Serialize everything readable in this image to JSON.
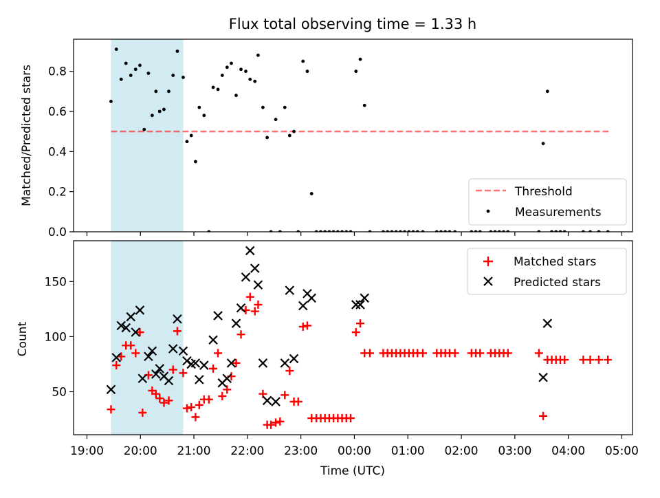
{
  "chart_data": [
    {
      "type": "scatter",
      "title": "Flux total observing time = 1.33 h",
      "xlabel": "",
      "ylabel": "Matched/Predicted stars",
      "xlim": [
        -0.25,
        10.2
      ],
      "ylim": [
        0,
        0.96
      ],
      "yticks": [
        0.0,
        0.2,
        0.4,
        0.6,
        0.8
      ],
      "ytick_labels": [
        "0.0",
        "0.2",
        "0.4",
        "0.6",
        "0.8"
      ],
      "shaded_span": [
        0.45,
        1.8
      ],
      "shaded_color": "#add8e6",
      "threshold": {
        "label": "Threshold",
        "y": 0.5,
        "x": [
          0.45,
          9.75
        ],
        "color": "#ff0000"
      },
      "legend": {
        "position": "lower right",
        "entries": [
          "Threshold",
          "Measurements"
        ]
      },
      "series": [
        {
          "name": "Measurements",
          "marker": "dot",
          "color": "#000000",
          "points": [
            [
              0.45,
              0.65
            ],
            [
              0.55,
              0.91
            ],
            [
              0.64,
              0.76
            ],
            [
              0.73,
              0.84
            ],
            [
              0.82,
              0.78
            ],
            [
              0.91,
              0.81
            ],
            [
              0.99,
              0.83
            ],
            [
              1.07,
              0.51
            ],
            [
              1.15,
              0.79
            ],
            [
              1.22,
              0.58
            ],
            [
              1.29,
              0.7
            ],
            [
              1.36,
              0.6
            ],
            [
              1.44,
              0.61
            ],
            [
              1.53,
              0.7
            ],
            [
              1.61,
              0.78
            ],
            [
              1.69,
              0.9
            ],
            [
              1.8,
              0.77
            ],
            [
              1.87,
              0.45
            ],
            [
              1.95,
              0.48
            ],
            [
              2.03,
              0.35
            ],
            [
              2.1,
              0.62
            ],
            [
              2.19,
              0.58
            ],
            [
              2.28,
              0.0
            ],
            [
              2.36,
              0.72
            ],
            [
              2.45,
              0.71
            ],
            [
              2.53,
              0.78
            ],
            [
              2.62,
              0.82
            ],
            [
              2.7,
              0.84
            ],
            [
              2.79,
              0.68
            ],
            [
              2.88,
              0.81
            ],
            [
              2.97,
              0.8
            ],
            [
              3.05,
              0.76
            ],
            [
              3.14,
              0.75
            ],
            [
              3.2,
              0.88
            ],
            [
              3.29,
              0.62
            ],
            [
              3.37,
              0.47
            ],
            [
              3.44,
              0.0
            ],
            [
              3.53,
              0.56
            ],
            [
              3.61,
              0.0
            ],
            [
              3.7,
              0.62
            ],
            [
              3.79,
              0.48
            ],
            [
              3.87,
              0.5
            ],
            [
              3.95,
              0.0
            ],
            [
              4.04,
              0.85
            ],
            [
              4.12,
              0.8
            ],
            [
              4.2,
              0.19
            ],
            [
              4.29,
              0.0
            ],
            [
              4.37,
              0.0
            ],
            [
              4.45,
              0.0
            ],
            [
              4.53,
              0.0
            ],
            [
              4.61,
              0.0
            ],
            [
              4.69,
              0.0
            ],
            [
              4.77,
              0.0
            ],
            [
              4.85,
              0.0
            ],
            [
              4.93,
              0.0
            ],
            [
              5.03,
              0.8
            ],
            [
              5.11,
              0.86
            ],
            [
              5.19,
              0.63
            ],
            [
              5.29,
              0.0
            ],
            [
              5.54,
              0.0
            ],
            [
              5.62,
              0.0
            ],
            [
              5.7,
              0.0
            ],
            [
              5.78,
              0.0
            ],
            [
              5.86,
              0.0
            ],
            [
              5.94,
              0.0
            ],
            [
              6.02,
              0.0
            ],
            [
              6.1,
              0.0
            ],
            [
              6.18,
              0.0
            ],
            [
              6.28,
              0.0
            ],
            [
              6.54,
              0.0
            ],
            [
              6.62,
              0.0
            ],
            [
              6.7,
              0.0
            ],
            [
              6.78,
              0.0
            ],
            [
              6.88,
              0.0
            ],
            [
              7.19,
              0.0
            ],
            [
              7.27,
              0.0
            ],
            [
              7.35,
              0.0
            ],
            [
              7.55,
              0.0
            ],
            [
              7.63,
              0.0
            ],
            [
              7.71,
              0.0
            ],
            [
              7.79,
              0.0
            ],
            [
              7.87,
              0.0
            ],
            [
              8.45,
              0.0
            ],
            [
              8.53,
              0.44
            ],
            [
              8.61,
              0.7
            ],
            [
              8.69,
              0.0
            ],
            [
              8.77,
              0.0
            ],
            [
              8.85,
              0.0
            ],
            [
              8.93,
              0.0
            ],
            [
              9.28,
              0.0
            ],
            [
              9.41,
              0.0
            ],
            [
              9.57,
              0.0
            ],
            [
              9.74,
              0.0
            ]
          ]
        }
      ]
    },
    {
      "type": "scatter",
      "title": "",
      "xlabel": "Time (UTC)",
      "ylabel": "Count",
      "xlim": [
        -0.25,
        10.2
      ],
      "ylim": [
        11,
        187
      ],
      "yticks": [
        50,
        100,
        150
      ],
      "ytick_labels": [
        "50",
        "100",
        "150"
      ],
      "xticks": [
        0,
        1,
        2,
        3,
        4,
        5,
        6,
        7,
        8,
        9,
        10
      ],
      "xtick_labels": [
        "19:00",
        "20:00",
        "21:00",
        "22:00",
        "23:00",
        "00:00",
        "01:00",
        "02:00",
        "03:00",
        "04:00",
        "05:00"
      ],
      "shaded_span": [
        0.45,
        1.8
      ],
      "shaded_color": "#add8e6",
      "legend": {
        "position": "upper right",
        "entries": [
          "Matched stars",
          "Predicted stars"
        ]
      },
      "series": [
        {
          "name": "Matched stars",
          "marker": "plus",
          "color": "#ff0000",
          "points": [
            [
              0.45,
              34
            ],
            [
              0.55,
              74
            ],
            [
              0.64,
              82
            ],
            [
              0.73,
              92
            ],
            [
              0.82,
              92
            ],
            [
              0.91,
              85
            ],
            [
              0.99,
              104
            ],
            [
              1.04,
              31
            ],
            [
              1.15,
              65
            ],
            [
              1.22,
              51
            ],
            [
              1.29,
              48
            ],
            [
              1.36,
              44
            ],
            [
              1.44,
              40
            ],
            [
              1.53,
              42
            ],
            [
              1.61,
              70
            ],
            [
              1.69,
              105
            ],
            [
              1.8,
              67
            ],
            [
              1.87,
              35
            ],
            [
              1.95,
              36
            ],
            [
              2.03,
              27
            ],
            [
              2.1,
              38
            ],
            [
              2.19,
              43
            ],
            [
              2.28,
              43
            ],
            [
              2.36,
              71
            ],
            [
              2.45,
              85
            ],
            [
              2.53,
              46
            ],
            [
              2.62,
              52
            ],
            [
              2.7,
              64
            ],
            [
              2.79,
              76
            ],
            [
              2.88,
              102
            ],
            [
              2.97,
              124
            ],
            [
              3.05,
              136
            ],
            [
              3.14,
              123
            ],
            [
              3.2,
              129
            ],
            [
              3.29,
              48
            ],
            [
              3.37,
              20
            ],
            [
              3.44,
              20
            ],
            [
              3.53,
              22
            ],
            [
              3.61,
              23
            ],
            [
              3.7,
              47
            ],
            [
              3.79,
              69
            ],
            [
              3.87,
              41
            ],
            [
              3.95,
              41
            ],
            [
              4.04,
              109
            ],
            [
              4.12,
              110
            ],
            [
              4.2,
              26
            ],
            [
              4.29,
              26
            ],
            [
              4.37,
              26
            ],
            [
              4.45,
              26
            ],
            [
              4.53,
              26
            ],
            [
              4.61,
              26
            ],
            [
              4.69,
              26
            ],
            [
              4.77,
              26
            ],
            [
              4.85,
              26
            ],
            [
              4.93,
              26
            ],
            [
              5.03,
              104
            ],
            [
              5.11,
              112
            ],
            [
              5.19,
              85
            ],
            [
              5.29,
              85
            ],
            [
              5.54,
              85
            ],
            [
              5.62,
              85
            ],
            [
              5.7,
              85
            ],
            [
              5.78,
              85
            ],
            [
              5.86,
              85
            ],
            [
              5.94,
              85
            ],
            [
              6.02,
              85
            ],
            [
              6.1,
              85
            ],
            [
              6.18,
              85
            ],
            [
              6.28,
              85
            ],
            [
              6.54,
              85
            ],
            [
              6.62,
              85
            ],
            [
              6.7,
              85
            ],
            [
              6.78,
              85
            ],
            [
              6.88,
              85
            ],
            [
              7.19,
              85
            ],
            [
              7.27,
              85
            ],
            [
              7.35,
              85
            ],
            [
              7.55,
              85
            ],
            [
              7.63,
              85
            ],
            [
              7.71,
              85
            ],
            [
              7.79,
              85
            ],
            [
              7.87,
              85
            ],
            [
              8.45,
              85
            ],
            [
              8.53,
              28
            ],
            [
              8.61,
              79
            ],
            [
              8.69,
              79
            ],
            [
              8.77,
              79
            ],
            [
              8.85,
              79
            ],
            [
              8.93,
              79
            ],
            [
              9.28,
              79
            ],
            [
              9.41,
              79
            ],
            [
              9.57,
              79
            ],
            [
              9.74,
              79
            ]
          ]
        },
        {
          "name": "Predicted stars",
          "marker": "x",
          "color": "#000000",
          "points": [
            [
              0.45,
              52
            ],
            [
              0.55,
              81
            ],
            [
              0.64,
              110
            ],
            [
              0.73,
              108
            ],
            [
              0.82,
              118
            ],
            [
              0.91,
              104
            ],
            [
              0.99,
              124
            ],
            [
              1.04,
              62
            ],
            [
              1.15,
              82
            ],
            [
              1.22,
              87
            ],
            [
              1.29,
              66
            ],
            [
              1.36,
              71
            ],
            [
              1.44,
              64
            ],
            [
              1.53,
              60
            ],
            [
              1.61,
              89
            ],
            [
              1.69,
              116
            ],
            [
              1.8,
              87
            ],
            [
              1.87,
              78
            ],
            [
              1.95,
              75
            ],
            [
              2.03,
              76
            ],
            [
              2.1,
              61
            ],
            [
              2.19,
              74
            ],
            [
              2.36,
              97
            ],
            [
              2.45,
              119
            ],
            [
              2.53,
              58
            ],
            [
              2.62,
              62
            ],
            [
              2.7,
              76
            ],
            [
              2.79,
              112
            ],
            [
              2.88,
              126
            ],
            [
              2.97,
              154
            ],
            [
              3.05,
              178
            ],
            [
              3.14,
              162
            ],
            [
              3.2,
              147
            ],
            [
              3.29,
              76
            ],
            [
              3.37,
              42
            ],
            [
              3.53,
              41
            ],
            [
              3.7,
              76
            ],
            [
              3.79,
              142
            ],
            [
              3.87,
              80
            ],
            [
              4.04,
              128
            ],
            [
              4.12,
              139
            ],
            [
              4.2,
              135
            ],
            [
              5.03,
              129
            ],
            [
              5.11,
              129
            ],
            [
              5.19,
              135
            ],
            [
              8.53,
              63
            ],
            [
              8.61,
              112
            ]
          ]
        }
      ]
    }
  ]
}
